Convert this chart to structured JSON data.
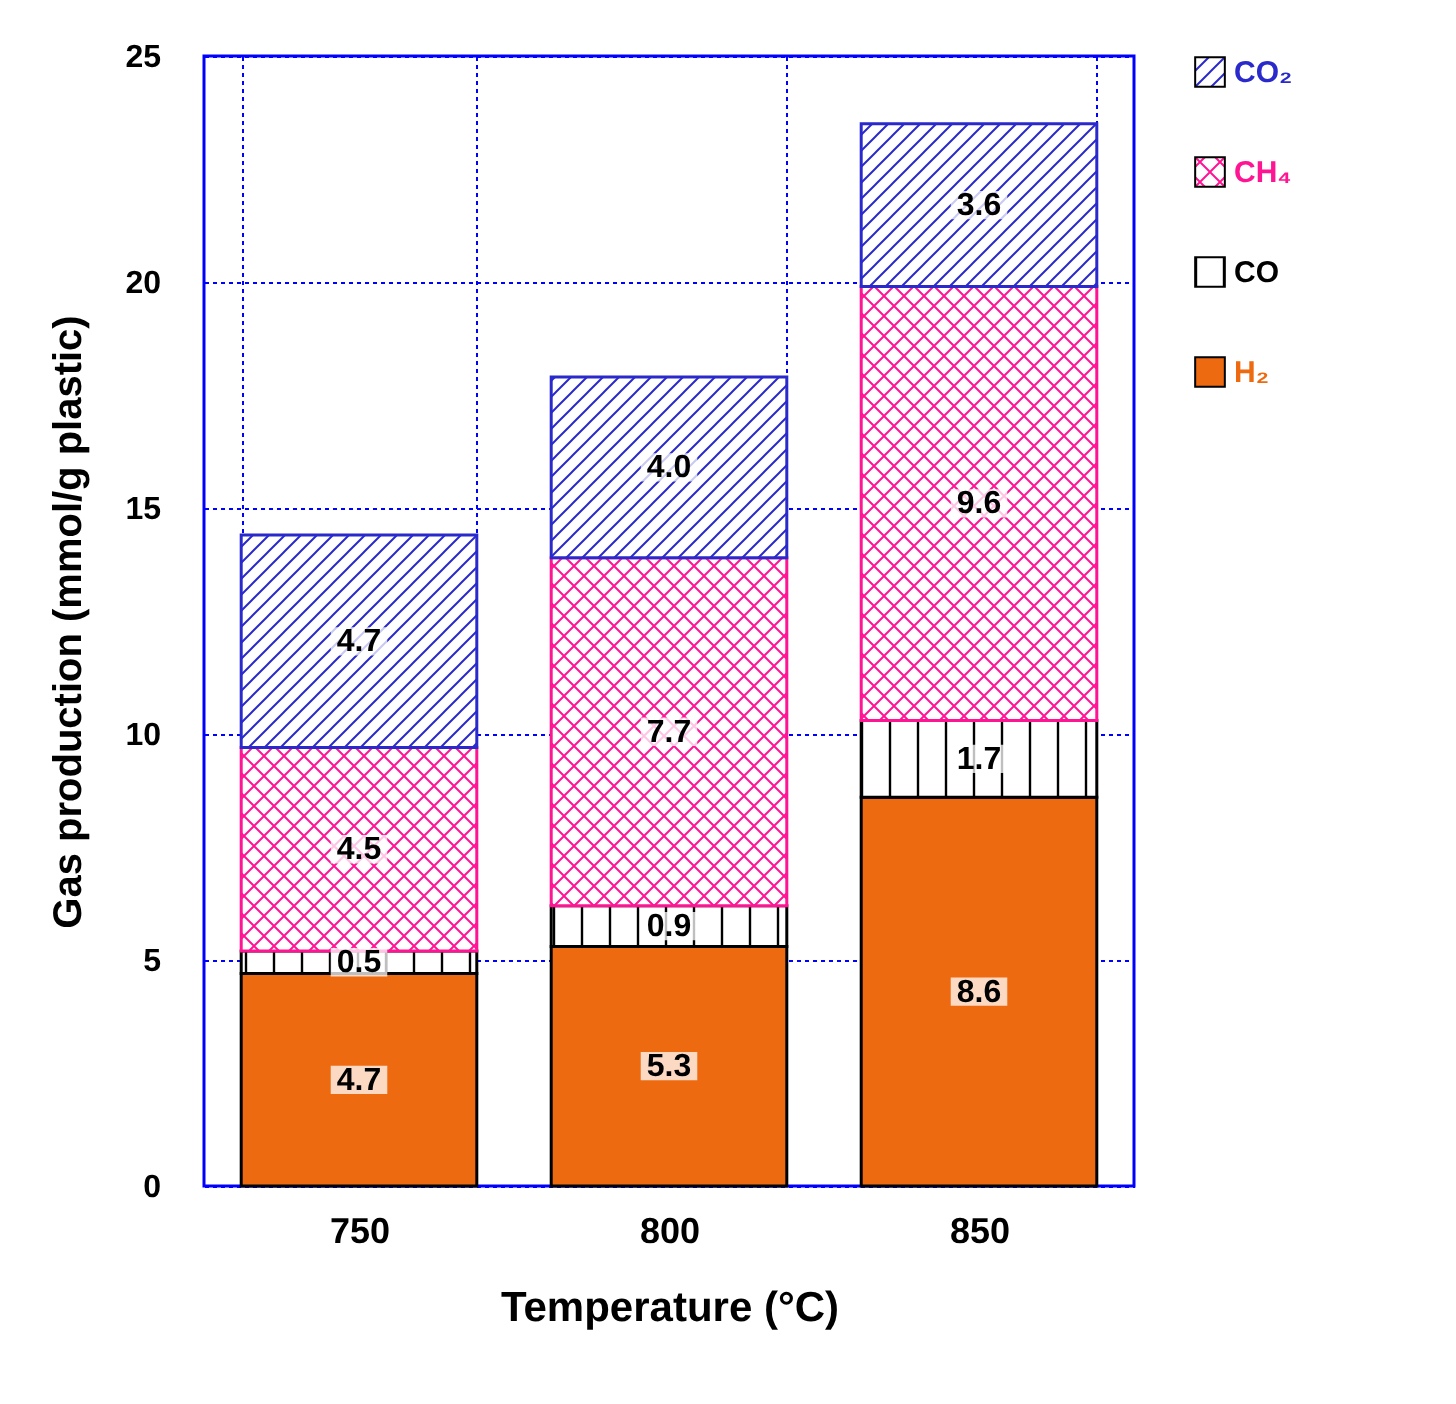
{
  "chart_data": {
    "type": "bar",
    "stacked": true,
    "xlabel": "Temperature (°C)",
    "ylabel": "Gas production (mmol/g plastic)",
    "categories": [
      "750",
      "800",
      "850"
    ],
    "series": [
      {
        "name": "H₂",
        "color": "#ee6a10",
        "values": [
          4.7,
          5.3,
          8.6
        ],
        "value_labels": [
          "4.7",
          "5.3",
          "8.6"
        ]
      },
      {
        "name": "CO",
        "color": "#000000",
        "values": [
          0.5,
          0.9,
          1.7
        ],
        "value_labels": [
          "0.5",
          "0.9",
          "1.7"
        ]
      },
      {
        "name": "CH₄",
        "color": "#ff1493",
        "values": [
          4.5,
          7.7,
          9.6
        ],
        "value_labels": [
          "4.5",
          "7.7",
          "9.6"
        ]
      },
      {
        "name": "CO₂",
        "color": "#2a2acc",
        "values": [
          4.7,
          4.0,
          3.6
        ],
        "value_labels": [
          "4.7",
          "4.0",
          "3.6"
        ]
      }
    ],
    "ylim": [
      0,
      25
    ],
    "yticks": [
      0,
      5,
      10,
      15,
      20,
      25
    ],
    "grid": true,
    "legend": "top right"
  }
}
